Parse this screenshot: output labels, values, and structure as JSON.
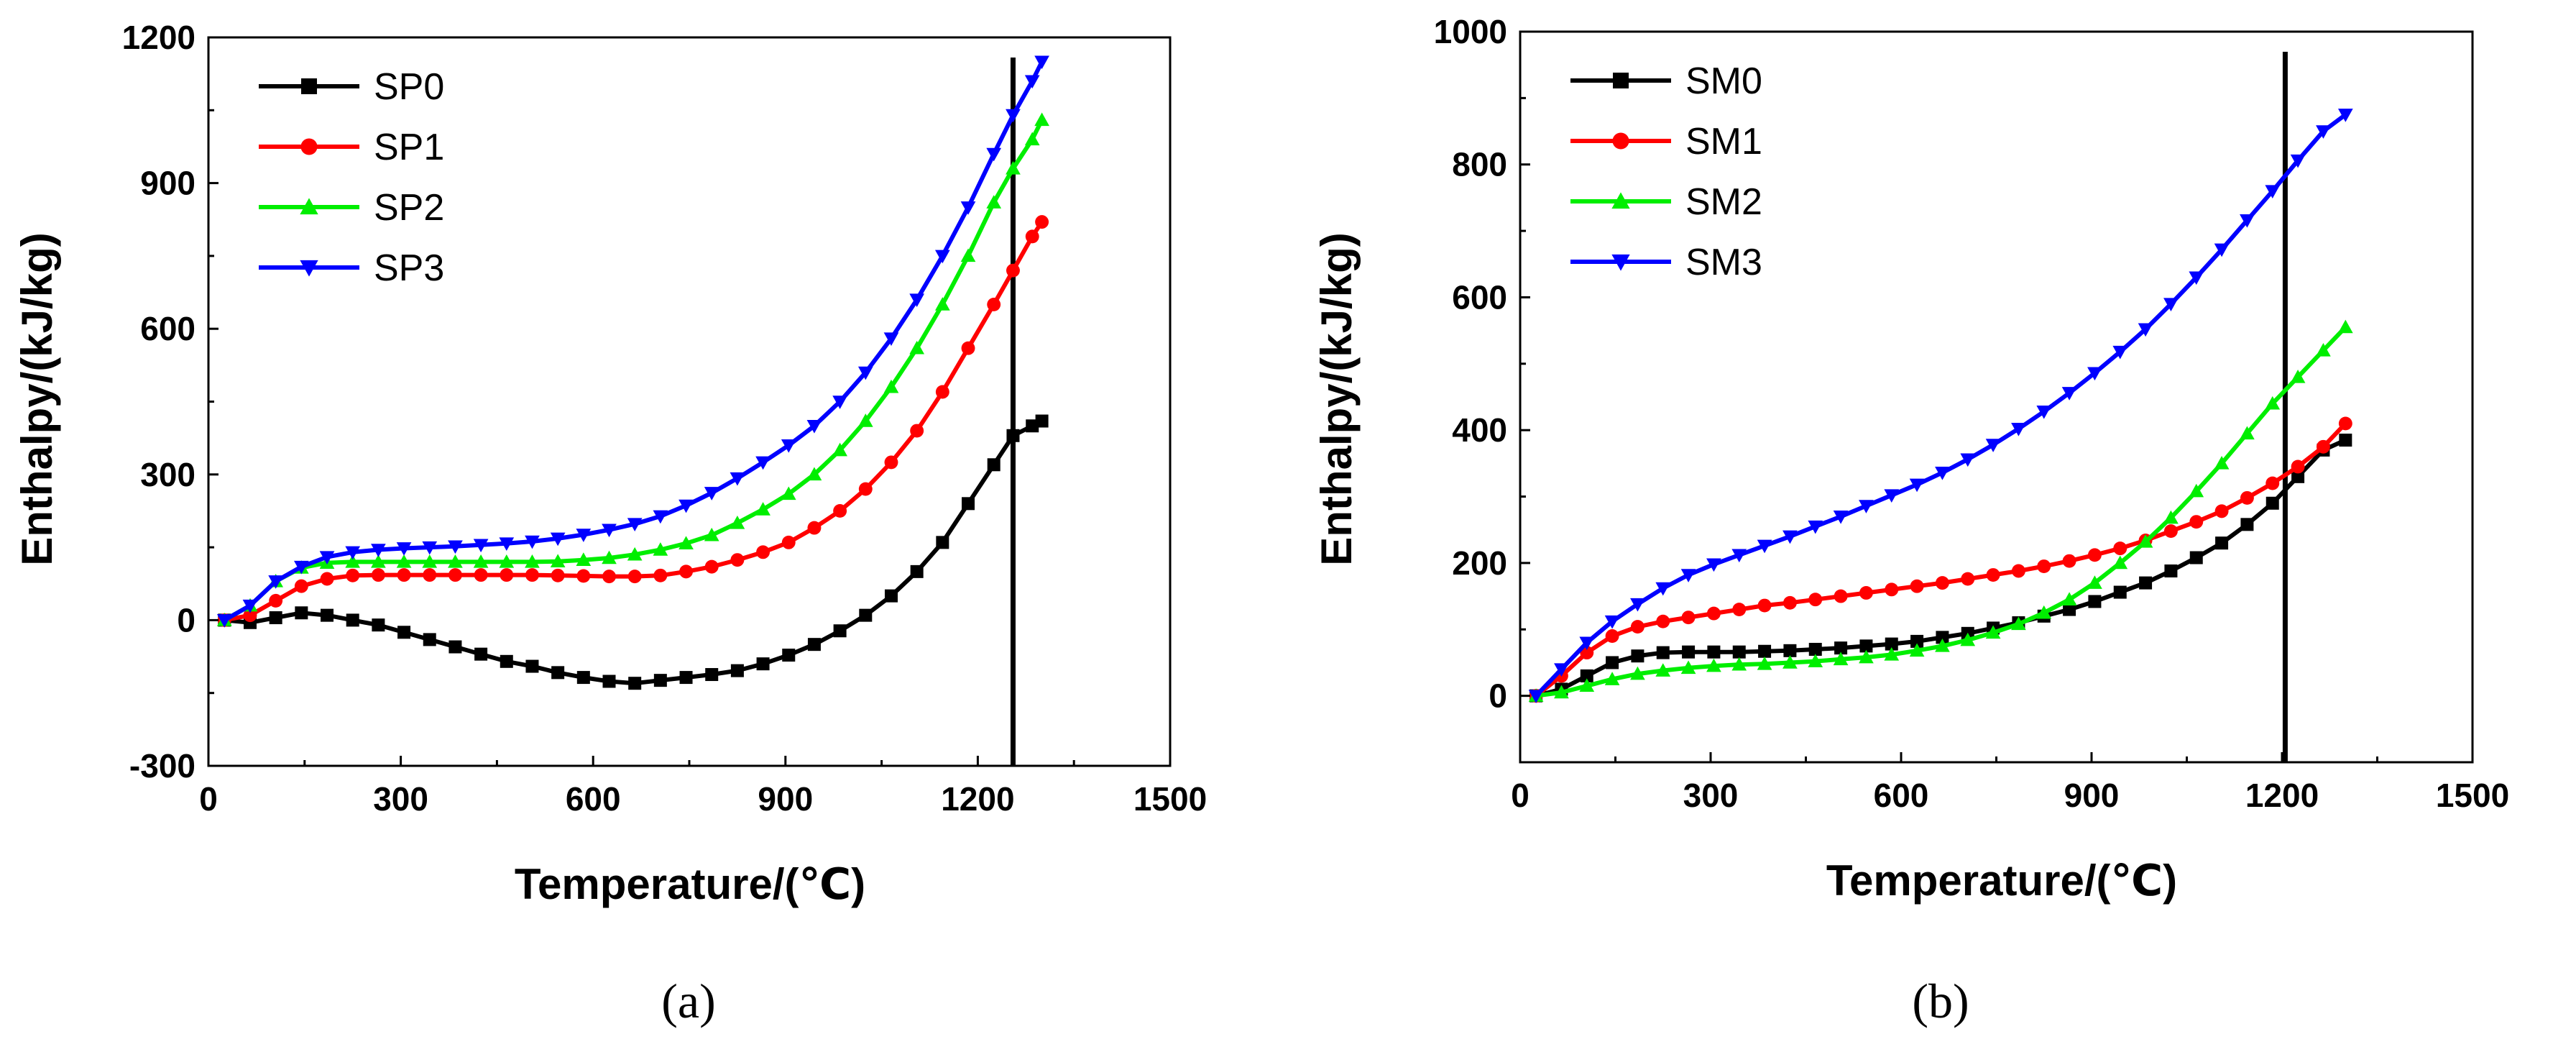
{
  "chart_data": [
    {
      "type": "line",
      "panel_label": "(a)",
      "xlabel": "Temperature/(℃)",
      "ylabel": "Enthalpy/(kJ/kg)",
      "xlim": [
        0,
        1500
      ],
      "ylim": [
        -300,
        1200
      ],
      "xticks": [
        0,
        300,
        600,
        900,
        1200,
        1500
      ],
      "yticks": [
        -300,
        0,
        300,
        600,
        900,
        1200
      ],
      "xtick_labels": [
        "0",
        "300",
        "600",
        "900",
        "1200",
        "1500"
      ],
      "ytick_labels": [
        "-300",
        "0",
        "300",
        "600",
        "900",
        "1200"
      ],
      "legend_position": "top-left",
      "vline_x": 1255,
      "series": [
        {
          "name": "SP0",
          "color": "#000000",
          "marker": "square",
          "x": [
            25,
            65,
            105,
            145,
            185,
            225,
            265,
            305,
            345,
            385,
            425,
            465,
            505,
            545,
            585,
            625,
            665,
            705,
            745,
            785,
            825,
            865,
            905,
            945,
            985,
            1025,
            1065,
            1105,
            1145,
            1185,
            1225,
            1255,
            1285,
            1300
          ],
          "y": [
            0,
            -5,
            5,
            15,
            10,
            0,
            -10,
            -25,
            -40,
            -55,
            -70,
            -85,
            -95,
            -108,
            -118,
            -126,
            -130,
            -124,
            -118,
            -112,
            -104,
            -90,
            -72,
            -50,
            -22,
            10,
            50,
            100,
            160,
            240,
            320,
            380,
            400,
            410
          ]
        },
        {
          "name": "SP1",
          "color": "#ff0000",
          "marker": "circle",
          "x": [
            25,
            65,
            105,
            145,
            185,
            225,
            265,
            305,
            345,
            385,
            425,
            465,
            505,
            545,
            585,
            625,
            665,
            705,
            745,
            785,
            825,
            865,
            905,
            945,
            985,
            1025,
            1065,
            1105,
            1145,
            1185,
            1225,
            1255,
            1285,
            1300
          ],
          "y": [
            0,
            10,
            40,
            70,
            85,
            92,
            93,
            93,
            93,
            93,
            93,
            93,
            93,
            92,
            91,
            90,
            90,
            92,
            100,
            110,
            124,
            140,
            160,
            190,
            225,
            270,
            325,
            390,
            470,
            560,
            650,
            720,
            790,
            820
          ]
        },
        {
          "name": "SP2",
          "color": "#00ee00",
          "marker": "triangle-up",
          "x": [
            25,
            65,
            105,
            145,
            185,
            225,
            265,
            305,
            345,
            385,
            425,
            465,
            505,
            545,
            585,
            625,
            665,
            705,
            745,
            785,
            825,
            865,
            905,
            945,
            985,
            1025,
            1065,
            1105,
            1145,
            1185,
            1225,
            1255,
            1285,
            1300
          ],
          "y": [
            0,
            30,
            80,
            108,
            118,
            120,
            120,
            120,
            120,
            120,
            120,
            120,
            120,
            121,
            124,
            128,
            135,
            145,
            158,
            175,
            200,
            228,
            260,
            300,
            350,
            410,
            480,
            560,
            650,
            750,
            860,
            930,
            990,
            1030
          ]
        },
        {
          "name": "SP3",
          "color": "#0000ff",
          "marker": "triangle-down",
          "x": [
            25,
            65,
            105,
            145,
            185,
            225,
            265,
            305,
            345,
            385,
            425,
            465,
            505,
            545,
            585,
            625,
            665,
            705,
            745,
            785,
            825,
            865,
            905,
            945,
            985,
            1025,
            1065,
            1105,
            1145,
            1185,
            1225,
            1255,
            1285,
            1300
          ],
          "y": [
            0,
            30,
            80,
            110,
            130,
            140,
            145,
            148,
            150,
            152,
            155,
            158,
            162,
            168,
            176,
            186,
            198,
            214,
            236,
            262,
            292,
            325,
            360,
            400,
            450,
            510,
            580,
            660,
            750,
            850,
            960,
            1040,
            1110,
            1150
          ]
        }
      ]
    },
    {
      "type": "line",
      "panel_label": "(b)",
      "xlabel": "Temperature/(℃)",
      "ylabel": "Enthalpy/(kJ/kg)",
      "xlim": [
        0,
        1500
      ],
      "ylim": [
        -100,
        1000
      ],
      "xticks": [
        0,
        300,
        600,
        900,
        1200,
        1500
      ],
      "yticks": [
        0,
        200,
        400,
        600,
        800,
        1000
      ],
      "xtick_labels": [
        "0",
        "300",
        "600",
        "900",
        "1200",
        "1500"
      ],
      "ytick_labels": [
        "0",
        "200",
        "400",
        "600",
        "800",
        "1000"
      ],
      "legend_position": "top-left",
      "vline_x": 1205,
      "series": [
        {
          "name": "SM0",
          "color": "#000000",
          "marker": "square",
          "x": [
            25,
            65,
            105,
            145,
            185,
            225,
            265,
            305,
            345,
            385,
            425,
            465,
            505,
            545,
            585,
            625,
            665,
            705,
            745,
            785,
            825,
            865,
            905,
            945,
            985,
            1025,
            1065,
            1105,
            1145,
            1185,
            1225,
            1265,
            1300
          ],
          "y": [
            0,
            10,
            30,
            50,
            60,
            65,
            66,
            66,
            66,
            67,
            68,
            70,
            72,
            75,
            78,
            82,
            88,
            94,
            102,
            110,
            120,
            130,
            142,
            156,
            170,
            188,
            208,
            230,
            258,
            290,
            330,
            370,
            385
          ]
        },
        {
          "name": "SM1",
          "color": "#ff0000",
          "marker": "circle",
          "x": [
            25,
            65,
            105,
            145,
            185,
            225,
            265,
            305,
            345,
            385,
            425,
            465,
            505,
            545,
            585,
            625,
            665,
            705,
            745,
            785,
            825,
            865,
            905,
            945,
            985,
            1025,
            1065,
            1105,
            1145,
            1185,
            1225,
            1265,
            1300
          ],
          "y": [
            0,
            30,
            65,
            90,
            104,
            112,
            118,
            124,
            130,
            136,
            140,
            145,
            150,
            155,
            160,
            165,
            170,
            176,
            182,
            188,
            195,
            203,
            212,
            222,
            234,
            248,
            262,
            278,
            298,
            320,
            345,
            375,
            410
          ]
        },
        {
          "name": "SM2",
          "color": "#00ee00",
          "marker": "triangle-up",
          "x": [
            25,
            65,
            105,
            145,
            185,
            225,
            265,
            305,
            345,
            385,
            425,
            465,
            505,
            545,
            585,
            625,
            665,
            705,
            745,
            785,
            825,
            865,
            905,
            945,
            985,
            1025,
            1065,
            1105,
            1145,
            1185,
            1225,
            1265,
            1300
          ],
          "y": [
            0,
            5,
            15,
            25,
            33,
            38,
            42,
            45,
            47,
            48,
            50,
            52,
            55,
            58,
            62,
            68,
            75,
            84,
            95,
            108,
            125,
            145,
            170,
            200,
            232,
            268,
            308,
            350,
            395,
            440,
            480,
            520,
            555
          ]
        },
        {
          "name": "SM3",
          "color": "#0000ff",
          "marker": "triangle-down",
          "x": [
            25,
            65,
            105,
            145,
            185,
            225,
            265,
            305,
            345,
            385,
            425,
            465,
            505,
            545,
            585,
            625,
            665,
            705,
            745,
            785,
            825,
            865,
            905,
            945,
            985,
            1025,
            1065,
            1105,
            1145,
            1185,
            1225,
            1265,
            1300
          ],
          "y": [
            0,
            40,
            80,
            112,
            138,
            162,
            182,
            198,
            212,
            226,
            240,
            255,
            270,
            286,
            302,
            318,
            336,
            356,
            378,
            402,
            428,
            456,
            486,
            518,
            552,
            590,
            630,
            672,
            716,
            760,
            806,
            850,
            875
          ]
        }
      ]
    }
  ]
}
